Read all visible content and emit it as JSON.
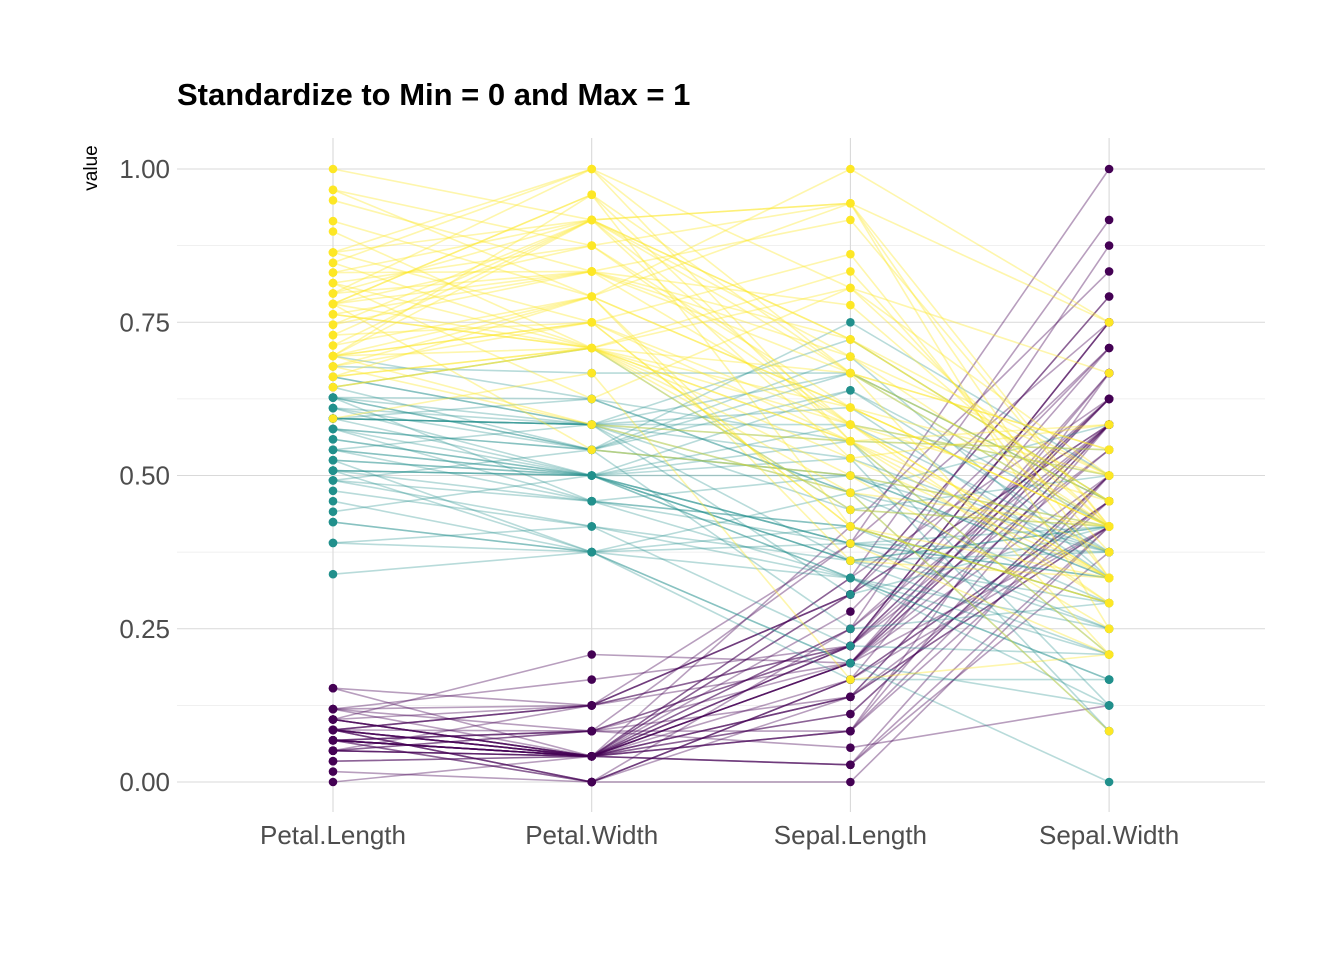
{
  "chart_data": {
    "type": "parallel-coordinates",
    "title": "Standardize to Min = 0 and Max = 1",
    "ylabel": "value",
    "xlabel": "",
    "categories": [
      "Petal.Length",
      "Petal.Width",
      "Sepal.Length",
      "Sepal.Width"
    ],
    "ylim": [
      0,
      1
    ],
    "yticks": [
      0.0,
      0.25,
      0.5,
      0.75,
      1.0
    ],
    "ytick_labels": [
      "0.00",
      "0.25",
      "0.50",
      "0.75",
      "1.00"
    ],
    "grid": true,
    "legend": "none",
    "colors": {
      "setosa": "#440154",
      "versicolor": "#21908C",
      "virginica": "#FDE725"
    },
    "series": [
      {
        "group": "setosa",
        "lines": [
          [
            0.068,
            0.042,
            0.222,
            0.625
          ],
          [
            0.068,
            0.042,
            0.167,
            0.417
          ],
          [
            0.051,
            0.042,
            0.111,
            0.5
          ],
          [
            0.085,
            0.042,
            0.083,
            0.458
          ],
          [
            0.068,
            0.042,
            0.194,
            0.667
          ],
          [
            0.119,
            0.125,
            0.306,
            0.792
          ],
          [
            0.068,
            0.083,
            0.083,
            0.583
          ],
          [
            0.085,
            0.042,
            0.194,
            0.583
          ],
          [
            0.068,
            0.042,
            0.028,
            0.375
          ],
          [
            0.085,
            0.0,
            0.167,
            0.458
          ],
          [
            0.085,
            0.042,
            0.306,
            0.708
          ],
          [
            0.102,
            0.042,
            0.139,
            0.583
          ],
          [
            0.068,
            0.0,
            0.139,
            0.417
          ],
          [
            0.017,
            0.0,
            0.0,
            0.417
          ],
          [
            0.034,
            0.042,
            0.417,
            0.833
          ],
          [
            0.085,
            0.125,
            0.389,
            1.0
          ],
          [
            0.051,
            0.125,
            0.306,
            0.792
          ],
          [
            0.068,
            0.083,
            0.222,
            0.625
          ],
          [
            0.119,
            0.083,
            0.389,
            0.75
          ],
          [
            0.085,
            0.083,
            0.222,
            0.75
          ],
          [
            0.119,
            0.042,
            0.306,
            0.583
          ],
          [
            0.085,
            0.125,
            0.222,
            0.708
          ],
          [
            0.0,
            0.042,
            0.083,
            0.667
          ],
          [
            0.119,
            0.167,
            0.222,
            0.542
          ],
          [
            0.153,
            0.042,
            0.139,
            0.583
          ],
          [
            0.102,
            0.042,
            0.194,
            0.417
          ],
          [
            0.102,
            0.125,
            0.194,
            0.583
          ],
          [
            0.085,
            0.042,
            0.25,
            0.625
          ],
          [
            0.068,
            0.042,
            0.25,
            0.583
          ],
          [
            0.102,
            0.042,
            0.111,
            0.5
          ],
          [
            0.102,
            0.042,
            0.139,
            0.458
          ],
          [
            0.085,
            0.125,
            0.306,
            0.583
          ],
          [
            0.085,
            0.0,
            0.25,
            0.875
          ],
          [
            0.068,
            0.042,
            0.333,
            0.917
          ],
          [
            0.085,
            0.0,
            0.167,
            0.458
          ],
          [
            0.034,
            0.042,
            0.194,
            0.5
          ],
          [
            0.051,
            0.042,
            0.333,
            0.625
          ],
          [
            0.068,
            0.0,
            0.167,
            0.667
          ],
          [
            0.051,
            0.042,
            0.028,
            0.417
          ],
          [
            0.085,
            0.042,
            0.222,
            0.583
          ],
          [
            0.051,
            0.083,
            0.194,
            0.625
          ],
          [
            0.051,
            0.083,
            0.056,
            0.125
          ],
          [
            0.051,
            0.042,
            0.028,
            0.5
          ],
          [
            0.102,
            0.208,
            0.194,
            0.625
          ],
          [
            0.153,
            0.125,
            0.222,
            0.75
          ],
          [
            0.068,
            0.083,
            0.139,
            0.417
          ],
          [
            0.102,
            0.042,
            0.222,
            0.75
          ],
          [
            0.068,
            0.042,
            0.083,
            0.5
          ],
          [
            0.085,
            0.042,
            0.278,
            0.708
          ],
          [
            0.068,
            0.042,
            0.194,
            0.542
          ]
        ]
      },
      {
        "group": "versicolor",
        "lines": [
          [
            0.627,
            0.542,
            0.75,
            0.5
          ],
          [
            0.593,
            0.583,
            0.583,
            0.5
          ],
          [
            0.661,
            0.583,
            0.722,
            0.458
          ],
          [
            0.508,
            0.5,
            0.333,
            0.125
          ],
          [
            0.61,
            0.583,
            0.611,
            0.333
          ],
          [
            0.593,
            0.5,
            0.389,
            0.333
          ],
          [
            0.627,
            0.625,
            0.556,
            0.542
          ],
          [
            0.39,
            0.375,
            0.167,
            0.167
          ],
          [
            0.61,
            0.5,
            0.639,
            0.375
          ],
          [
            0.492,
            0.542,
            0.25,
            0.292
          ],
          [
            0.424,
            0.375,
            0.194,
            0.0
          ],
          [
            0.542,
            0.583,
            0.444,
            0.417
          ],
          [
            0.508,
            0.375,
            0.472,
            0.083
          ],
          [
            0.627,
            0.542,
            0.5,
            0.375
          ],
          [
            0.441,
            0.5,
            0.361,
            0.375
          ],
          [
            0.576,
            0.542,
            0.667,
            0.458
          ],
          [
            0.593,
            0.583,
            0.361,
            0.417
          ],
          [
            0.525,
            0.375,
            0.417,
            0.292
          ],
          [
            0.593,
            0.583,
            0.528,
            0.083
          ],
          [
            0.492,
            0.417,
            0.361,
            0.208
          ],
          [
            0.644,
            0.708,
            0.444,
            0.5
          ],
          [
            0.508,
            0.5,
            0.5,
            0.333
          ],
          [
            0.661,
            0.583,
            0.556,
            0.208
          ],
          [
            0.627,
            0.458,
            0.5,
            0.333
          ],
          [
            0.559,
            0.5,
            0.583,
            0.375
          ],
          [
            0.576,
            0.542,
            0.639,
            0.417
          ],
          [
            0.644,
            0.542,
            0.694,
            0.333
          ],
          [
            0.678,
            0.667,
            0.667,
            0.417
          ],
          [
            0.593,
            0.583,
            0.472,
            0.375
          ],
          [
            0.424,
            0.375,
            0.389,
            0.25
          ],
          [
            0.475,
            0.417,
            0.333,
            0.167
          ],
          [
            0.458,
            0.375,
            0.333,
            0.167
          ],
          [
            0.492,
            0.458,
            0.417,
            0.292
          ],
          [
            0.695,
            0.625,
            0.472,
            0.292
          ],
          [
            0.593,
            0.583,
            0.306,
            0.417
          ],
          [
            0.593,
            0.625,
            0.472,
            0.583
          ],
          [
            0.627,
            0.583,
            0.667,
            0.458
          ],
          [
            0.576,
            0.5,
            0.556,
            0.125
          ],
          [
            0.525,
            0.5,
            0.361,
            0.417
          ],
          [
            0.508,
            0.5,
            0.333,
            0.208
          ],
          [
            0.576,
            0.458,
            0.333,
            0.25
          ],
          [
            0.61,
            0.542,
            0.5,
            0.417
          ],
          [
            0.508,
            0.458,
            0.417,
            0.25
          ],
          [
            0.339,
            0.375,
            0.194,
            0.125
          ],
          [
            0.542,
            0.5,
            0.361,
            0.292
          ],
          [
            0.542,
            0.458,
            0.389,
            0.417
          ],
          [
            0.542,
            0.5,
            0.389,
            0.375
          ],
          [
            0.559,
            0.5,
            0.528,
            0.375
          ],
          [
            0.39,
            0.417,
            0.222,
            0.208
          ],
          [
            0.525,
            0.5,
            0.389,
            0.333
          ]
        ]
      },
      {
        "group": "virginica",
        "lines": [
          [
            0.847,
            1.0,
            0.556,
            0.542
          ],
          [
            0.695,
            0.75,
            0.417,
            0.292
          ],
          [
            0.831,
            0.833,
            0.778,
            0.417
          ],
          [
            0.78,
            0.708,
            0.556,
            0.375
          ],
          [
            0.814,
            0.875,
            0.611,
            0.417
          ],
          [
            0.949,
            0.833,
            0.917,
            0.417
          ],
          [
            0.593,
            0.667,
            0.167,
            0.208
          ],
          [
            0.898,
            0.708,
            0.833,
            0.375
          ],
          [
            0.814,
            0.708,
            0.667,
            0.208
          ],
          [
            0.864,
            1.0,
            0.806,
            0.667
          ],
          [
            0.695,
            0.792,
            0.611,
            0.5
          ],
          [
            0.729,
            0.75,
            0.583,
            0.292
          ],
          [
            0.763,
            0.833,
            0.694,
            0.417
          ],
          [
            0.678,
            0.792,
            0.389,
            0.208
          ],
          [
            0.695,
            0.958,
            0.417,
            0.333
          ],
          [
            0.729,
            0.917,
            0.583,
            0.5
          ],
          [
            0.763,
            0.708,
            0.611,
            0.417
          ],
          [
            0.966,
            0.875,
            0.944,
            0.75
          ],
          [
            1.0,
            0.917,
            0.944,
            0.25
          ],
          [
            0.678,
            0.583,
            0.472,
            0.083
          ],
          [
            0.797,
            0.917,
            0.722,
            0.5
          ],
          [
            0.661,
            0.792,
            0.361,
            0.333
          ],
          [
            0.966,
            0.792,
            0.944,
            0.333
          ],
          [
            0.661,
            0.708,
            0.556,
            0.292
          ],
          [
            0.797,
            0.833,
            0.667,
            0.542
          ],
          [
            0.847,
            0.708,
            0.806,
            0.5
          ],
          [
            0.644,
            0.708,
            0.528,
            0.333
          ],
          [
            0.661,
            0.708,
            0.5,
            0.417
          ],
          [
            0.78,
            0.833,
            0.583,
            0.333
          ],
          [
            0.814,
            0.625,
            0.806,
            0.417
          ],
          [
            0.864,
            0.75,
            0.861,
            0.333
          ],
          [
            0.915,
            0.792,
            1.0,
            0.75
          ],
          [
            0.78,
            0.875,
            0.583,
            0.333
          ],
          [
            0.695,
            0.583,
            0.556,
            0.333
          ],
          [
            0.78,
            0.542,
            0.5,
            0.25
          ],
          [
            0.864,
            0.917,
            0.944,
            0.417
          ],
          [
            0.78,
            0.958,
            0.556,
            0.583
          ],
          [
            0.763,
            0.708,
            0.583,
            0.458
          ],
          [
            0.644,
            0.708,
            0.472,
            0.417
          ],
          [
            0.746,
            0.833,
            0.722,
            0.458
          ],
          [
            0.78,
            0.958,
            0.667,
            0.458
          ],
          [
            0.695,
            0.917,
            0.722,
            0.458
          ],
          [
            0.695,
            0.75,
            0.417,
            0.292
          ],
          [
            0.831,
            0.917,
            0.694,
            0.5
          ],
          [
            0.797,
            1.0,
            0.667,
            0.542
          ],
          [
            0.712,
            0.917,
            0.667,
            0.417
          ],
          [
            0.678,
            0.75,
            0.556,
            0.208
          ],
          [
            0.712,
            0.792,
            0.611,
            0.417
          ],
          [
            0.746,
            0.917,
            0.528,
            0.583
          ],
          [
            0.695,
            0.708,
            0.444,
            0.417
          ]
        ]
      }
    ]
  }
}
